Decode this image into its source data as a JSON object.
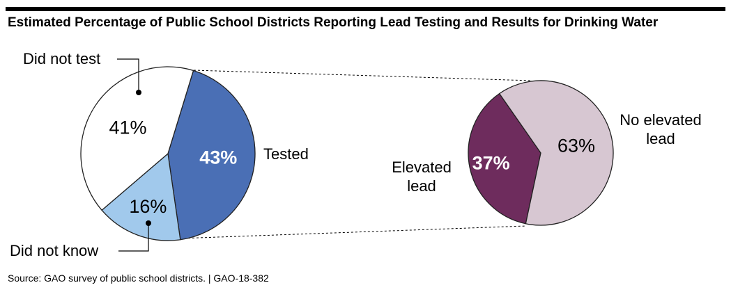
{
  "chart_data": [
    {
      "type": "pie",
      "title": "Estimated Percentage of Public School Districts Reporting Lead Testing and Results for Drinking Water",
      "slices": [
        {
          "label": "Tested",
          "value": 43,
          "value_label": "43%",
          "color": "#4a6fb5",
          "text_color": "#ffffff"
        },
        {
          "label": "Did not know",
          "value": 16,
          "value_label": "16%",
          "color": "#a1c9ec",
          "text_color": "#000000"
        },
        {
          "label": "Did not test",
          "value": 41,
          "value_label": "41%",
          "color": "#ffffff",
          "text_color": "#000000"
        }
      ]
    },
    {
      "type": "pie",
      "subset_of": "Tested",
      "slices": [
        {
          "label": "Elevated lead",
          "value": 37,
          "value_label": "37%",
          "color": "#6e2c5d",
          "text_color": "#ffffff"
        },
        {
          "label": "No elevated lead",
          "value": 63,
          "value_label": "63%",
          "color": "#d7c7d2",
          "text_color": "#000000"
        }
      ]
    }
  ],
  "labels": {
    "tested": "Tested",
    "did_not_know": "Did not know",
    "did_not_test": "Did not test",
    "elevated_1": "Elevated",
    "elevated_2": "lead",
    "no_elevated_1": "No elevated",
    "no_elevated_2": "lead"
  },
  "source": "Source: GAO survey of public school districts.  |  GAO-18-382"
}
